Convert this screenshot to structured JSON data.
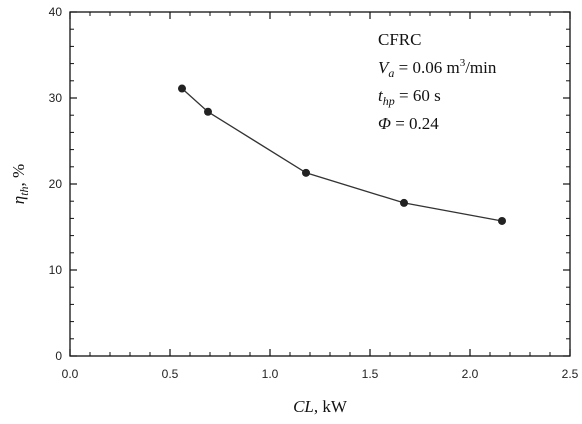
{
  "chart_data": {
    "type": "line",
    "x": [
      0.56,
      0.69,
      1.18,
      1.67,
      2.16
    ],
    "series": [
      {
        "values": [
          31.1,
          28.4,
          21.3,
          17.8,
          15.7
        ]
      }
    ],
    "xlim": [
      0.0,
      2.5
    ],
    "ylim": [
      0,
      40
    ],
    "xticks": [
      "0.0",
      "0.5",
      "1.0",
      "1.5",
      "2.0",
      "2.5"
    ],
    "yticks": [
      "0",
      "10",
      "20",
      "30",
      "40"
    ],
    "xlabel": {
      "main": "CL",
      "unit": ", kW"
    },
    "ylabel": {
      "main": "η",
      "sub": "th",
      "unit": ", %"
    },
    "annotations": {
      "line1": "CFRC",
      "line2": {
        "var": "V",
        "sub": "a",
        "text": " = 0.06 m",
        "sup": "3",
        "unit": "/min"
      },
      "line3": {
        "var": "t",
        "sub": "hp",
        "text": " = 60 s"
      },
      "line4": {
        "var": "Φ",
        "text": " = 0.24"
      }
    },
    "grid": false,
    "line_color": "#333333",
    "marker_color": "#222222"
  }
}
